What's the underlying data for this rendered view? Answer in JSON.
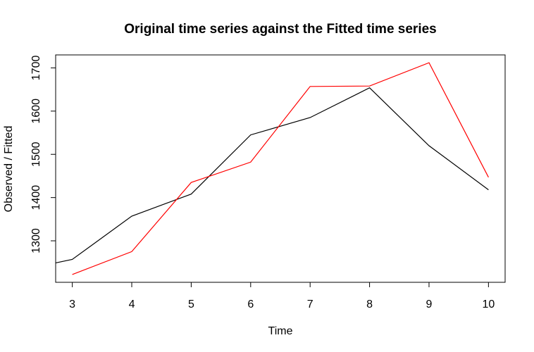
{
  "chart_data": {
    "type": "line",
    "title": "Original time series against the Fitted time series",
    "xlabel": "Time",
    "ylabel": "Observed / Fitted",
    "xlim": [
      2.72,
      10.28
    ],
    "ylim": [
      1204,
      1730
    ],
    "x_ticks": [
      "3",
      "4",
      "5",
      "6",
      "7",
      "8",
      "9",
      "10"
    ],
    "y_ticks": [
      "1300",
      "1400",
      "1500",
      "1600",
      "1700"
    ],
    "grid": false,
    "legend": "none",
    "series": [
      {
        "color": "#000000",
        "x": [
          2.72,
          3,
          4,
          5,
          6,
          7,
          8,
          9,
          10
        ],
        "values": [
          1249,
          1257,
          1357,
          1408,
          1545,
          1585,
          1654,
          1520,
          1418
        ]
      },
      {
        "color": "#ff0000",
        "x": [
          3,
          4,
          5,
          6,
          7,
          8,
          9,
          10
        ],
        "values": [
          1222,
          1275,
          1435,
          1482,
          1657,
          1658,
          1712,
          1447
        ]
      }
    ]
  }
}
